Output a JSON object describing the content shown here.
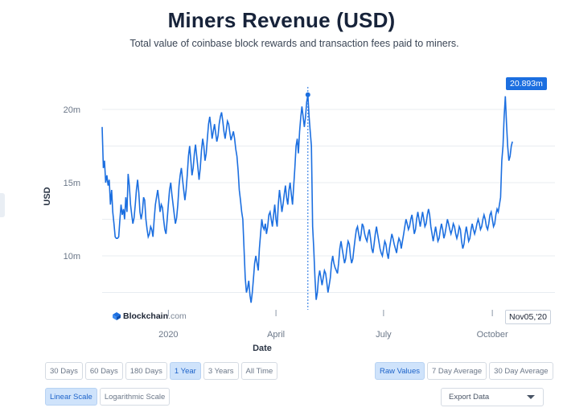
{
  "header": {
    "title": "Miners Revenue (USD)",
    "subtitle": "Total value of coinbase block rewards and transaction fees paid to miners."
  },
  "chart_data": {
    "type": "line",
    "title": "Miners Revenue (USD)",
    "xlabel": "Date",
    "ylabel": "USD",
    "y_ticks": [
      "10m",
      "15m",
      "20m"
    ],
    "x_ticks": [
      "2020",
      "April",
      "July",
      "October"
    ],
    "x_range": [
      "2019-11-06",
      "2020-11-08"
    ],
    "ylim": [
      6.5,
      21.5
    ],
    "grid": true,
    "series": [
      {
        "name": "Miners Revenue (USD, millions)",
        "x_start": "2019-11-06",
        "step_days": 1,
        "values": [
          18.8,
          16.0,
          16.5,
          15.0,
          15.5,
          14.8,
          15.2,
          13.5,
          14.5,
          13.0,
          12.2,
          11.3,
          11.2,
          11.2,
          11.3,
          12.5,
          13.5,
          12.8,
          13.2,
          12.5,
          14.0,
          13.0,
          15.6,
          14.8,
          13.5,
          12.8,
          12.2,
          12.6,
          13.5,
          14.5,
          15.2,
          14.3,
          13.0,
          12.5,
          13.0,
          14.0,
          13.8,
          12.5,
          11.8,
          11.3,
          11.5,
          12.0,
          11.8,
          11.3,
          12.5,
          13.5,
          14.0,
          14.5,
          13.8,
          13.0,
          13.5,
          13.3,
          12.5,
          11.8,
          11.5,
          12.5,
          13.5,
          14.5,
          15.0,
          14.2,
          13.5,
          12.8,
          12.2,
          12.6,
          13.5,
          14.8,
          15.5,
          16.0,
          15.2,
          14.5,
          13.8,
          14.5,
          15.5,
          16.8,
          17.5,
          16.5,
          15.5,
          16.0,
          17.0,
          17.6,
          16.8,
          16.0,
          15.2,
          16.0,
          17.2,
          18.0,
          17.5,
          16.5,
          17.0,
          18.0,
          19.0,
          19.5,
          18.8,
          18.0,
          18.5,
          19.0,
          18.4,
          17.8,
          18.2,
          19.0,
          19.5,
          19.8,
          19.2,
          18.5,
          18.0,
          18.6,
          19.2,
          19.0,
          18.4,
          17.9,
          18.2,
          18.5,
          18.0,
          17.3,
          16.8,
          15.8,
          14.5,
          13.8,
          13.0,
          12.5,
          10.5,
          8.5,
          7.5,
          7.8,
          8.3,
          7.3,
          6.8,
          7.5,
          8.5,
          9.5,
          10.0,
          9.5,
          9.0,
          10.5,
          11.5,
          12.5,
          12.0,
          11.8,
          12.2,
          11.5,
          12.0,
          12.8,
          13.0,
          12.5,
          12.0,
          12.8,
          13.5,
          12.5,
          12.0,
          13.5,
          14.5,
          13.8,
          13.0,
          13.5,
          14.2,
          14.8,
          14.0,
          13.5,
          14.5,
          15.0,
          14.2,
          13.5,
          14.8,
          16.0,
          17.5,
          18.0,
          17.0,
          18.5,
          19.5,
          20.2,
          19.5,
          18.8,
          19.5,
          20.5,
          21.0,
          19.5,
          18.5,
          17.5,
          12.0,
          10.5,
          8.5,
          7.0,
          7.5,
          8.5,
          9.0,
          8.5,
          8.0,
          8.5,
          9.0,
          8.8,
          8.2,
          7.5,
          8.0,
          8.5,
          9.5,
          10.0,
          9.5,
          9.2,
          9.0,
          8.8,
          9.5,
          10.5,
          11.0,
          10.5,
          10.0,
          9.5,
          9.8,
          10.5,
          11.0,
          10.8,
          10.0,
          9.5,
          9.8,
          10.5,
          11.2,
          11.8,
          12.0,
          11.5,
          11.0,
          11.5,
          12.2,
          12.0,
          11.5,
          11.2,
          11.0,
          11.5,
          11.8,
          11.2,
          10.5,
          10.2,
          10.8,
          11.5,
          12.0,
          11.5,
          11.0,
          10.5,
          10.2,
          10.0,
          10.5,
          11.0,
          10.8,
          10.2,
          9.8,
          10.5,
          11.0,
          11.5,
          11.2,
          10.8,
          10.5,
          10.2,
          10.8,
          11.2,
          11.0,
          10.5,
          11.0,
          11.5,
          12.0,
          12.5,
          12.2,
          11.8,
          12.0,
          12.5,
          12.8,
          12.2,
          11.5,
          11.8,
          12.5,
          13.0,
          12.5,
          12.0,
          12.5,
          13.0,
          12.5,
          12.0,
          12.2,
          12.8,
          13.2,
          12.8,
          12.0,
          11.5,
          11.0,
          11.5,
          12.0,
          11.5,
          11.0,
          11.2,
          11.8,
          12.2,
          11.8,
          11.2,
          11.5,
          12.0,
          12.5,
          12.2,
          11.8,
          11.5,
          11.8,
          12.2,
          12.0,
          11.5,
          11.2,
          11.5,
          12.0,
          11.8,
          11.0,
          10.5,
          10.8,
          11.5,
          12.0,
          11.5,
          11.0,
          11.2,
          11.8,
          12.2,
          11.8,
          11.5,
          11.8,
          12.2,
          12.5,
          12.2,
          11.8,
          12.0,
          12.5,
          12.8,
          12.5,
          12.0,
          11.8,
          12.2,
          12.8,
          13.0,
          12.5,
          12.0,
          12.2,
          12.8,
          13.2,
          13.0,
          13.5,
          14.0,
          16.5,
          17.5,
          19.5,
          20.9,
          19.0,
          17.5,
          16.5,
          16.8,
          17.5,
          17.8
        ]
      }
    ],
    "highlight": {
      "date_label": "Nov05,'20",
      "value_label": "20.893m"
    }
  },
  "controls": {
    "time_ranges": [
      {
        "label": "30 Days",
        "active": false
      },
      {
        "label": "60 Days",
        "active": false
      },
      {
        "label": "180 Days",
        "active": false
      },
      {
        "label": "1 Year",
        "active": true
      },
      {
        "label": "3 Years",
        "active": false
      },
      {
        "label": "All Time",
        "active": false
      }
    ],
    "value_modes": [
      {
        "label": "Raw Values",
        "active": true
      },
      {
        "label": "7 Day Average",
        "active": false
      },
      {
        "label": "30 Day Average",
        "active": false
      }
    ],
    "scales": [
      {
        "label": "Linear Scale",
        "active": true
      },
      {
        "label": "Logarithmic Scale",
        "active": false
      }
    ],
    "export": {
      "label": "Export Data"
    }
  },
  "branding": {
    "name": "Blockchain",
    "domain": ".com"
  },
  "colors": {
    "line": "#1c6fe0",
    "accent": "#1c6fe0",
    "active_bg": "#cfe3fb",
    "grid": "#e8ecf1"
  }
}
